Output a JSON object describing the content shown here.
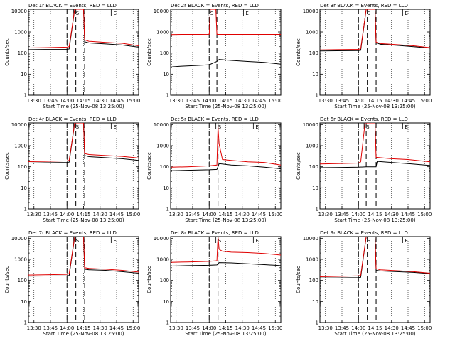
{
  "chart_data": [
    {
      "type": "line",
      "title": "Det 1r BLACK = Events, RED = LLD",
      "xlabel": "Start Time (25-Nov-08 13:25:00)",
      "ylabel": "Counts/sec",
      "xticks": [
        "13:30",
        "13:45",
        "14:00",
        "14:15",
        "14:30",
        "14:45",
        "15:00"
      ],
      "yticks": [
        "1",
        "10",
        "100",
        "1000",
        "10000"
      ],
      "yscale": "log",
      "ylim": [
        1,
        12000
      ],
      "xlim": [
        "13:25",
        "15:05"
      ],
      "markers": [
        {
          "label": "S",
          "x": "14:08"
        },
        {
          "label": "E",
          "x": "14:42"
        }
      ],
      "dashed_lines": [
        "14:00",
        "14:08",
        "14:16"
      ],
      "series": [
        {
          "name": "BLACK = Events",
          "color": "#000000",
          "x": [
            "13:25",
            "13:40",
            "14:00",
            "14:02",
            "14:07",
            "14:09",
            "14:15",
            "14:16",
            "14:20",
            "14:35",
            "14:50",
            "15:05"
          ],
          "values": [
            145,
            148,
            150,
            155,
            12000,
            12000,
            12000,
            340,
            300,
            270,
            240,
            190
          ]
        },
        {
          "name": "RED = LLD",
          "color": "#e00000",
          "x": [
            "13:25",
            "13:40",
            "14:00",
            "14:02",
            "14:07",
            "14:09",
            "14:15",
            "14:16",
            "14:20",
            "14:35",
            "14:50",
            "15:05"
          ],
          "values": [
            175,
            180,
            190,
            200,
            12000,
            12000,
            12000,
            420,
            360,
            320,
            290,
            220
          ]
        }
      ]
    },
    {
      "type": "line",
      "title": "Det 2r BLACK = Events, RED = LLD",
      "xlabel": "Start Time (25-Nov-08 13:25:00)",
      "ylabel": "Counts/sec",
      "xticks": [
        "13:30",
        "13:45",
        "14:00",
        "14:15",
        "14:30",
        "14:45",
        "15:00"
      ],
      "yticks": [
        "1",
        "10",
        "100",
        "1000",
        "10000"
      ],
      "yscale": "log",
      "ylim": [
        1,
        12000
      ],
      "xlim": [
        "13:25",
        "15:05"
      ],
      "markers": [
        {
          "label": "S",
          "x": "14:01"
        },
        {
          "label": "E",
          "x": "14:33"
        }
      ],
      "dashed_lines": [
        "14:00",
        "14:07"
      ],
      "series": [
        {
          "name": "BLACK = Events",
          "color": "#000000",
          "x": [
            "13:25",
            "13:35",
            "13:50",
            "14:00",
            "14:07",
            "14:09",
            "14:20",
            "14:35",
            "14:50",
            "15:05"
          ],
          "values": [
            22,
            24,
            26,
            28,
            40,
            50,
            45,
            40,
            36,
            30
          ]
        },
        {
          "name": "RED = LLD",
          "color": "#e00000",
          "x": [
            "13:25",
            "13:35",
            "13:50",
            "14:00",
            "14:01",
            "14:06",
            "14:07",
            "14:20",
            "14:35",
            "14:50",
            "15:05"
          ],
          "values": [
            750,
            760,
            760,
            770,
            12000,
            12000,
            760,
            760,
            760,
            760,
            760
          ]
        }
      ]
    },
    {
      "type": "line",
      "title": "Det 3r BLACK = Events, RED = LLD",
      "xlabel": "Start Time (25-Nov-08 13:25:00)",
      "ylabel": "Counts/sec",
      "xticks": [
        "13:30",
        "13:45",
        "14:00",
        "14:15",
        "14:30",
        "14:45",
        "15:00"
      ],
      "yticks": [
        "1",
        "10",
        "100",
        "1000",
        "10000"
      ],
      "yscale": "log",
      "ylim": [
        1,
        12000
      ],
      "xlim": [
        "13:25",
        "15:05"
      ],
      "markers": [
        {
          "label": "S",
          "x": "14:08"
        },
        {
          "label": "E",
          "x": "14:42"
        }
      ],
      "dashed_lines": [
        "14:00",
        "14:08",
        "14:16"
      ],
      "series": [
        {
          "name": "BLACK = Events",
          "color": "#000000",
          "x": [
            "13:25",
            "13:40",
            "14:00",
            "14:02",
            "14:07",
            "14:09",
            "14:15",
            "14:16",
            "14:20",
            "14:35",
            "14:50",
            "15:05"
          ],
          "values": [
            125,
            128,
            130,
            135,
            12000,
            12000,
            12000,
            300,
            260,
            230,
            200,
            170
          ]
        },
        {
          "name": "RED = LLD",
          "color": "#e00000",
          "x": [
            "13:25",
            "13:40",
            "14:00",
            "14:02",
            "14:07",
            "14:09",
            "14:15",
            "14:16",
            "14:20",
            "14:35",
            "14:50",
            "15:05"
          ],
          "values": [
            140,
            145,
            150,
            160,
            12000,
            12000,
            12000,
            330,
            280,
            250,
            220,
            180
          ]
        }
      ]
    },
    {
      "type": "line",
      "title": "Det 4r BLACK = Events, RED = LLD",
      "xlabel": "Start Time (25-Nov-08 13:25:00)",
      "ylabel": "Counts/sec",
      "xticks": [
        "13:30",
        "13:45",
        "14:00",
        "14:15",
        "14:30",
        "14:45",
        "15:00"
      ],
      "yticks": [
        "1",
        "10",
        "100",
        "1000",
        "10000"
      ],
      "yscale": "log",
      "ylim": [
        1,
        12000
      ],
      "xlim": [
        "13:25",
        "15:05"
      ],
      "markers": [
        {
          "label": "S",
          "x": "14:08"
        },
        {
          "label": "E",
          "x": "14:42"
        }
      ],
      "dashed_lines": [
        "14:00",
        "14:08",
        "14:16"
      ],
      "series": [
        {
          "name": "BLACK = Events",
          "color": "#000000",
          "x": [
            "13:25",
            "13:40",
            "14:00",
            "14:02",
            "14:07",
            "14:09",
            "14:15",
            "14:16",
            "14:20",
            "14:35",
            "14:50",
            "15:05"
          ],
          "values": [
            150,
            155,
            160,
            165,
            12000,
            12000,
            12000,
            340,
            300,
            270,
            240,
            200
          ]
        },
        {
          "name": "RED = LLD",
          "color": "#e00000",
          "x": [
            "13:25",
            "13:40",
            "14:00",
            "14:02",
            "14:07",
            "14:09",
            "14:15",
            "14:16",
            "14:20",
            "14:35",
            "14:50",
            "15:05"
          ],
          "values": [
            175,
            180,
            190,
            200,
            12000,
            12000,
            12000,
            420,
            380,
            340,
            310,
            260
          ]
        }
      ]
    },
    {
      "type": "line",
      "title": "Det 5r BLACK = Events, RED = LLD",
      "xlabel": "Start Time (25-Nov-08 13:25:00)",
      "ylabel": "Counts/sec",
      "xticks": [
        "13:30",
        "13:45",
        "14:00",
        "14:15",
        "14:30",
        "14:45",
        "15:00"
      ],
      "yticks": [
        "1",
        "10",
        "100",
        "1000",
        "10000"
      ],
      "yscale": "log",
      "ylim": [
        1,
        12000
      ],
      "xlim": [
        "13:25",
        "15:05"
      ],
      "markers": [
        {
          "label": "S",
          "x": "14:08"
        },
        {
          "label": "E",
          "x": "14:42"
        }
      ],
      "dashed_lines": [
        "14:00",
        "14:08"
      ],
      "series": [
        {
          "name": "BLACK = Events",
          "color": "#000000",
          "x": [
            "13:25",
            "13:40",
            "14:00",
            "14:07",
            "14:09",
            "14:20",
            "14:35",
            "14:50",
            "15:05"
          ],
          "values": [
            65,
            68,
            72,
            75,
            140,
            120,
            110,
            95,
            80
          ]
        },
        {
          "name": "RED = LLD",
          "color": "#e00000",
          "x": [
            "13:25",
            "13:40",
            "14:00",
            "14:07",
            "14:08",
            "14:09",
            "14:12",
            "14:20",
            "14:35",
            "14:50",
            "15:05"
          ],
          "values": [
            95,
            100,
            110,
            120,
            8000,
            1200,
            220,
            200,
            170,
            160,
            120
          ]
        }
      ]
    },
    {
      "type": "line",
      "title": "Det 6r BLACK = Events, RED = LLD",
      "xlabel": "Start Time (25-Nov-08 13:25:00)",
      "ylabel": "Counts/sec",
      "xticks": [
        "13:30",
        "13:45",
        "14:00",
        "14:15",
        "14:30",
        "14:45",
        "15:00"
      ],
      "yticks": [
        "1",
        "10",
        "100",
        "1000",
        "10000"
      ],
      "yscale": "log",
      "ylim": [
        1,
        12000
      ],
      "xlim": [
        "13:25",
        "15:05"
      ],
      "markers": [
        {
          "label": "S",
          "x": "14:07"
        },
        {
          "label": "E",
          "x": "14:42"
        }
      ],
      "dashed_lines": [
        "14:00",
        "14:07",
        "14:16"
      ],
      "series": [
        {
          "name": "BLACK = Events",
          "color": "#000000",
          "x": [
            "13:25",
            "13:40",
            "14:00",
            "14:07",
            "14:16",
            "14:17",
            "14:30",
            "14:45",
            "15:05"
          ],
          "values": [
            90,
            92,
            95,
            100,
            100,
            180,
            160,
            140,
            115
          ]
        },
        {
          "name": "RED = LLD",
          "color": "#e00000",
          "x": [
            "13:25",
            "13:40",
            "14:00",
            "14:02",
            "14:06",
            "14:08",
            "14:15",
            "14:16",
            "14:30",
            "14:45",
            "15:05"
          ],
          "values": [
            135,
            140,
            150,
            170,
            12000,
            12000,
            12000,
            280,
            240,
            220,
            170
          ]
        }
      ]
    },
    {
      "type": "line",
      "title": "Det 7r BLACK = Events, RED = LLD",
      "xlabel": "Start Time (25-Nov-08 13:25:00)",
      "ylabel": "Counts/sec",
      "xticks": [
        "13:30",
        "13:45",
        "14:00",
        "14:15",
        "14:30",
        "14:45",
        "15:00"
      ],
      "yticks": [
        "1",
        "10",
        "100",
        "1000",
        "10000"
      ],
      "yscale": "log",
      "ylim": [
        1,
        12000
      ],
      "xlim": [
        "13:25",
        "15:05"
      ],
      "markers": [
        {
          "label": "S",
          "x": "14:08"
        },
        {
          "label": "E",
          "x": "14:42"
        }
      ],
      "dashed_lines": [
        "14:00",
        "14:08",
        "14:16"
      ],
      "series": [
        {
          "name": "BLACK = Events",
          "color": "#000000",
          "x": [
            "13:25",
            "13:40",
            "14:00",
            "14:02",
            "14:07",
            "14:09",
            "14:15",
            "14:16",
            "14:20",
            "14:35",
            "14:50",
            "15:05"
          ],
          "values": [
            160,
            162,
            165,
            170,
            12000,
            12000,
            12000,
            340,
            320,
            300,
            260,
            220
          ]
        },
        {
          "name": "RED = LLD",
          "color": "#e00000",
          "x": [
            "13:25",
            "13:40",
            "14:00",
            "14:02",
            "14:07",
            "14:09",
            "14:15",
            "14:16",
            "14:20",
            "14:35",
            "14:50",
            "15:05"
          ],
          "values": [
            180,
            185,
            195,
            210,
            12000,
            12000,
            12000,
            400,
            370,
            340,
            300,
            250
          ]
        }
      ]
    },
    {
      "type": "line",
      "title": "Det 8r BLACK = Events, RED = LLD",
      "xlabel": "Start Time (25-Nov-08 13:25:00)",
      "ylabel": "Counts/sec",
      "xticks": [
        "13:30",
        "13:45",
        "14:00",
        "14:15",
        "14:30",
        "14:45",
        "15:00"
      ],
      "yticks": [
        "1",
        "10",
        "100",
        "1000",
        "10000"
      ],
      "yscale": "log",
      "ylim": [
        1,
        12000
      ],
      "xlim": [
        "13:25",
        "15:05"
      ],
      "markers": [
        {
          "label": "S",
          "x": "14:08"
        },
        {
          "label": "E",
          "x": "14:42"
        }
      ],
      "dashed_lines": [
        "14:00",
        "14:08"
      ],
      "series": [
        {
          "name": "BLACK = Events",
          "color": "#000000",
          "x": [
            "13:25",
            "13:40",
            "14:00",
            "14:07",
            "14:09",
            "14:20",
            "14:35",
            "14:50",
            "15:05"
          ],
          "values": [
            480,
            500,
            520,
            540,
            700,
            680,
            620,
            560,
            500
          ]
        },
        {
          "name": "RED = LLD",
          "color": "#e00000",
          "x": [
            "13:25",
            "13:40",
            "14:00",
            "14:07",
            "14:08",
            "14:09",
            "14:12",
            "14:20",
            "14:35",
            "14:50",
            "15:05"
          ],
          "values": [
            720,
            750,
            800,
            860,
            12000,
            3000,
            2400,
            2200,
            2100,
            1900,
            1600
          ]
        }
      ]
    },
    {
      "type": "line",
      "title": "Det 9r BLACK = Events, RED = LLD",
      "xlabel": "Start Time (25-Nov-08 13:25:00)",
      "ylabel": "Counts/sec",
      "xticks": [
        "13:30",
        "13:45",
        "14:00",
        "14:15",
        "14:30",
        "14:45",
        "15:00"
      ],
      "yticks": [
        "1",
        "10",
        "100",
        "1000",
        "10000"
      ],
      "yscale": "log",
      "ylim": [
        1,
        12000
      ],
      "xlim": [
        "13:25",
        "15:05"
      ],
      "markers": [
        {
          "label": "S",
          "x": "14:08"
        },
        {
          "label": "E",
          "x": "14:42"
        }
      ],
      "dashed_lines": [
        "14:00",
        "14:08",
        "14:16"
      ],
      "series": [
        {
          "name": "BLACK = Events",
          "color": "#000000",
          "x": [
            "13:25",
            "13:40",
            "14:00",
            "14:02",
            "14:07",
            "14:09",
            "14:15",
            "14:16",
            "14:20",
            "14:35",
            "14:50",
            "15:05"
          ],
          "values": [
            130,
            132,
            135,
            140,
            12000,
            12000,
            12000,
            300,
            280,
            260,
            240,
            210
          ]
        },
        {
          "name": "RED = LLD",
          "color": "#e00000",
          "x": [
            "13:25",
            "13:40",
            "14:00",
            "14:02",
            "14:07",
            "14:09",
            "14:15",
            "14:16",
            "14:20",
            "14:35",
            "14:50",
            "15:05"
          ],
          "values": [
            150,
            155,
            165,
            175,
            12000,
            12000,
            12000,
            360,
            320,
            290,
            260,
            220
          ]
        }
      ]
    }
  ]
}
